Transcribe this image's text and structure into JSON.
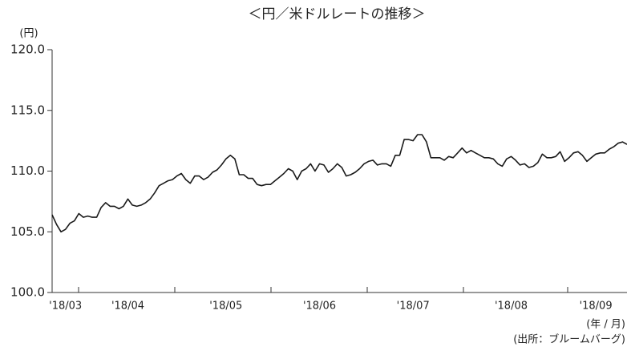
{
  "chart_data": {
    "type": "line",
    "title": "＜円／米ドルレートの推移＞",
    "y_label": "(円)",
    "x_label": "(年 / 月)",
    "source": "(出所：ブルームバーグ)",
    "color": "#1a1a1a",
    "categories": [
      null,
      null,
      null,
      "'18/03",
      null,
      null,
      null,
      null,
      null,
      null,
      null,
      null,
      null,
      null,
      null,
      null,
      null,
      "'18/04",
      null,
      null,
      null,
      null,
      null,
      null,
      null,
      null,
      null,
      null,
      null,
      null,
      null,
      null,
      null,
      null,
      null,
      null,
      null,
      null,
      null,
      "'18/05",
      null,
      null,
      null,
      null,
      null,
      null,
      null,
      null,
      null,
      null,
      null,
      null,
      null,
      null,
      null,
      null,
      null,
      null,
      null,
      null,
      "'18/06",
      null,
      null,
      null,
      null,
      null,
      null,
      null,
      null,
      null,
      null,
      null,
      null,
      null,
      null,
      null,
      null,
      null,
      null,
      null,
      null,
      "'18/07",
      null,
      null,
      null,
      null,
      null,
      null,
      null,
      null,
      null,
      null,
      null,
      null,
      null,
      null,
      null,
      null,
      null,
      null,
      null,
      null,
      null,
      "'18/08",
      null,
      null,
      null,
      null,
      null,
      null,
      null,
      null,
      null,
      null,
      null,
      null,
      null,
      null,
      null,
      null,
      null,
      null,
      "'18/09",
      null,
      null,
      null,
      null,
      null,
      null,
      null
    ],
    "values": [
      106.4,
      105.6,
      105.0,
      105.2,
      105.7,
      105.9,
      106.5,
      106.2,
      106.3,
      106.2,
      106.2,
      107.0,
      107.4,
      107.1,
      107.1,
      106.9,
      107.1,
      107.7,
      107.2,
      107.1,
      107.2,
      107.4,
      107.7,
      108.2,
      108.8,
      109.0,
      109.2,
      109.3,
      109.6,
      109.8,
      109.3,
      109.0,
      109.6,
      109.6,
      109.3,
      109.5,
      109.9,
      110.1,
      110.5,
      111.0,
      111.3,
      111.0,
      109.7,
      109.7,
      109.4,
      109.4,
      108.9,
      108.8,
      108.9,
      108.9,
      109.2,
      109.5,
      109.8,
      110.2,
      110.0,
      109.3,
      110.0,
      110.2,
      110.6,
      110.0,
      110.6,
      110.5,
      109.9,
      110.2,
      110.6,
      110.3,
      109.6,
      109.7,
      109.9,
      110.2,
      110.6,
      110.8,
      110.9,
      110.5,
      110.6,
      110.6,
      110.4,
      111.3,
      111.3,
      112.6,
      112.6,
      112.5,
      113.0,
      113.0,
      112.4,
      111.1,
      111.1,
      111.1,
      110.9,
      111.2,
      111.1,
      111.5,
      111.9,
      111.5,
      111.7,
      111.5,
      111.3,
      111.1,
      111.1,
      111.0,
      110.6,
      110.4,
      111.0,
      111.2,
      110.9,
      110.5,
      110.6,
      110.3,
      110.4,
      110.7,
      111.4,
      111.1,
      111.1,
      111.2,
      111.6,
      110.8,
      111.1,
      111.5,
      111.6,
      111.3,
      110.8,
      111.1,
      111.4,
      111.5,
      111.5,
      111.8,
      112.0,
      112.3,
      112.4,
      112.2
    ],
    "ylim": [
      100,
      120
    ],
    "yticks": [
      {
        "value": 100,
        "label": "100.0"
      },
      {
        "value": 105,
        "label": "105.0"
      },
      {
        "value": 110,
        "label": "110.0"
      },
      {
        "value": 115,
        "label": "115.0"
      },
      {
        "value": 120,
        "label": "120.0"
      }
    ]
  }
}
